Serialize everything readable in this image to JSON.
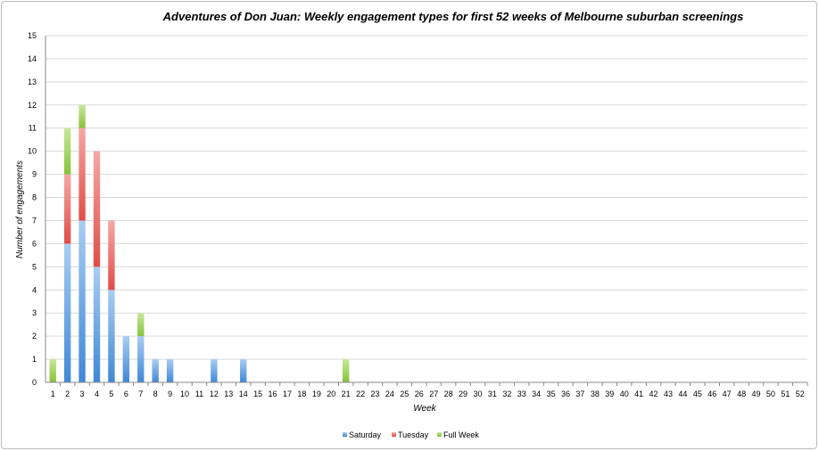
{
  "chart_data": {
    "type": "bar",
    "stacked": true,
    "title": "Adventures of Don Juan: Weekly engagement types for first 52 weeks of Melbourne suburban screenings",
    "xlabel": "Week",
    "ylabel": "Number of engagements",
    "ylim": [
      0,
      15
    ],
    "grid": true,
    "legend_position": "bottom",
    "categories": [
      "1",
      "2",
      "3",
      "4",
      "5",
      "6",
      "7",
      "8",
      "9",
      "10",
      "11",
      "12",
      "13",
      "14",
      "15",
      "16",
      "17",
      "18",
      "19",
      "20",
      "21",
      "22",
      "23",
      "24",
      "25",
      "26",
      "27",
      "28",
      "29",
      "30",
      "31",
      "32",
      "33",
      "34",
      "35",
      "36",
      "37",
      "38",
      "39",
      "40",
      "41",
      "42",
      "43",
      "44",
      "45",
      "46",
      "47",
      "48",
      "49",
      "50",
      "51",
      "52"
    ],
    "series": [
      {
        "name": "Saturday",
        "color": "#5b9bd5",
        "values": [
          0,
          6,
          7,
          5,
          4,
          2,
          2,
          1,
          1,
          0,
          0,
          1,
          0,
          1,
          0,
          0,
          0,
          0,
          0,
          0,
          0,
          0,
          0,
          0,
          0,
          0,
          0,
          0,
          0,
          0,
          0,
          0,
          0,
          0,
          0,
          0,
          0,
          0,
          0,
          0,
          0,
          0,
          0,
          0,
          0,
          0,
          0,
          0,
          0,
          0,
          0,
          0
        ]
      },
      {
        "name": "Tuesday",
        "color": "#e8605c",
        "values": [
          0,
          3,
          4,
          5,
          3,
          0,
          0,
          0,
          0,
          0,
          0,
          0,
          0,
          0,
          0,
          0,
          0,
          0,
          0,
          0,
          0,
          0,
          0,
          0,
          0,
          0,
          0,
          0,
          0,
          0,
          0,
          0,
          0,
          0,
          0,
          0,
          0,
          0,
          0,
          0,
          0,
          0,
          0,
          0,
          0,
          0,
          0,
          0,
          0,
          0,
          0,
          0
        ]
      },
      {
        "name": "Full Week",
        "color": "#9acd4a",
        "values": [
          1,
          2,
          1,
          0,
          0,
          0,
          1,
          0,
          0,
          0,
          0,
          0,
          0,
          0,
          0,
          0,
          0,
          0,
          0,
          0,
          1,
          0,
          0,
          0,
          0,
          0,
          0,
          0,
          0,
          0,
          0,
          0,
          0,
          0,
          0,
          0,
          0,
          0,
          0,
          0,
          0,
          0,
          0,
          0,
          0,
          0,
          0,
          0,
          0,
          0,
          0,
          0
        ]
      }
    ],
    "yticks": [
      "0",
      "1",
      "2",
      "3",
      "4",
      "5",
      "6",
      "7",
      "8",
      "9",
      "10",
      "11",
      "12",
      "13",
      "14",
      "15"
    ]
  }
}
